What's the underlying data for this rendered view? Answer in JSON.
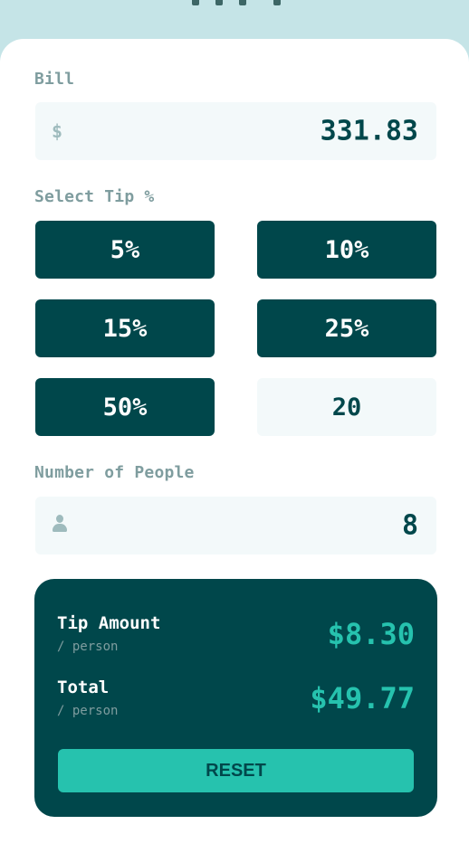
{
  "bill": {
    "label": "Bill",
    "currency_symbol": "$",
    "value": "331.83"
  },
  "tip": {
    "label": "Select Tip %",
    "options": [
      "5%",
      "10%",
      "15%",
      "25%",
      "50%"
    ],
    "custom_value": "20"
  },
  "people": {
    "label": "Number of People",
    "icon": "person-icon",
    "value": "8"
  },
  "results": {
    "tip_amount_label": "Tip Amount",
    "tip_amount_sub": "/ person",
    "tip_amount_value": "$8.30",
    "total_label": "Total",
    "total_sub": "/ person",
    "total_value": "$49.77",
    "reset_label": "RESET"
  },
  "colors": {
    "background": "#c5e4e7",
    "dark_cyan": "#00474b",
    "strong_cyan": "#26c2ae",
    "grayish_cyan": "#7f9d9f",
    "input_bg": "#f3f9fa"
  }
}
